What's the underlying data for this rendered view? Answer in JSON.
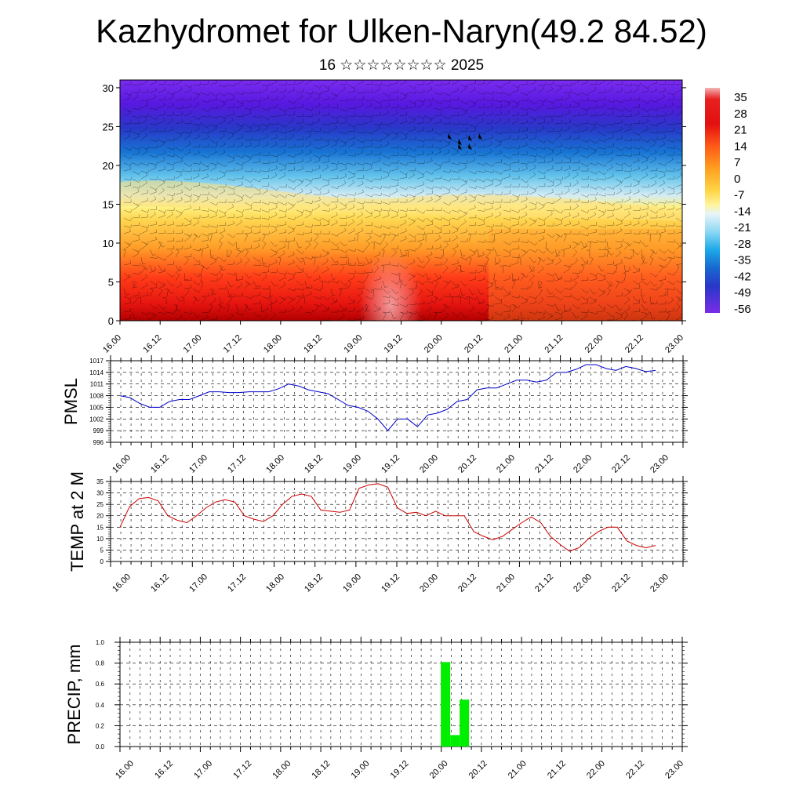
{
  "header": {
    "title": "Kazhydromet for Ulken-Naryn(49.2 84.52)",
    "subtitle": "16 ☆☆☆☆☆☆☆☆ 2025"
  },
  "chart_data": [
    {
      "type": "heatmap",
      "name": "upper-air-cross-section",
      "xlabel": "",
      "ylabel": "",
      "x_tick_labels": [
        "16.00",
        "16.12",
        "17.00",
        "17.12",
        "18.00",
        "18.12",
        "19.00",
        "19.12",
        "20.00",
        "20.12",
        "21.00",
        "21.12",
        "22.00",
        "22.12",
        "23.00"
      ],
      "y_ticks": [
        0,
        5,
        10,
        15,
        20,
        25,
        30
      ],
      "ylim": [
        0,
        31
      ],
      "colorbar_labels": [
        "35",
        "28",
        "21",
        "14",
        "7",
        "0",
        "-7",
        "-14",
        "-21",
        "-28",
        "-35",
        "-42",
        "-49",
        "-56"
      ],
      "colorbar_range": [
        -60,
        38
      ],
      "overlay": "wind barbs"
    },
    {
      "type": "line",
      "name": "pmsl",
      "ylabel": "PMSL",
      "y_ticks": [
        996,
        999,
        1002,
        1005,
        1008,
        1011,
        1014,
        1017
      ],
      "ylim": [
        996,
        1017
      ],
      "x_tick_labels": [
        "16.00",
        "16.12",
        "17.00",
        "17.12",
        "18.00",
        "18.12",
        "19.00",
        "19.12",
        "20.00",
        "20.12",
        "21.00",
        "21.12",
        "22.00",
        "22.12",
        "23.00"
      ],
      "line_color": "#0000cc",
      "values": [
        1008,
        1007.5,
        1006,
        1005,
        1005,
        1006.5,
        1007,
        1007,
        1008,
        1009,
        1009,
        1008.8,
        1008.8,
        1009,
        1009,
        1009,
        1009.8,
        1011,
        1010.5,
        1009.5,
        1009,
        1008.5,
        1007,
        1005.5,
        1005,
        1004,
        1002,
        999,
        1002,
        1002,
        1000,
        1003,
        1003.5,
        1004.5,
        1006.5,
        1007,
        1009.5,
        1010,
        1010,
        1011,
        1012,
        1012,
        1011.5,
        1012,
        1014,
        1014,
        1014.8,
        1016,
        1016,
        1015,
        1014.5,
        1015.5,
        1015,
        1014.2,
        1014.5
      ]
    },
    {
      "type": "line",
      "name": "temp-2m",
      "ylabel": "TEMP at 2 M",
      "y_ticks": [
        0,
        5,
        10,
        15,
        20,
        25,
        30,
        35
      ],
      "ylim": [
        0,
        35
      ],
      "x_tick_labels": [
        "16.00",
        "16.12",
        "17.00",
        "17.12",
        "18.00",
        "18.12",
        "19.00",
        "19.12",
        "20.00",
        "20.12",
        "21.00",
        "21.12",
        "22.00",
        "22.12",
        "23.00"
      ],
      "line_color": "#cc0000",
      "values": [
        15,
        24,
        27.5,
        28,
        26.5,
        20,
        18,
        17,
        20,
        23.5,
        26,
        27,
        26,
        20,
        18.5,
        17.5,
        20,
        25,
        28.5,
        29.5,
        28.5,
        22.5,
        22,
        21.5,
        22.5,
        32,
        33.5,
        34,
        32.5,
        23.5,
        21,
        21.5,
        20,
        22,
        20,
        20,
        20,
        13,
        11,
        9.5,
        11,
        14,
        17,
        19.5,
        17,
        11,
        7.5,
        4.5,
        6,
        10,
        13,
        15,
        15,
        9,
        7,
        6,
        7
      ]
    },
    {
      "type": "bar",
      "name": "precip",
      "ylabel": "PRECIP, mm",
      "y_ticks": [
        0.0,
        0.2,
        0.4,
        0.6,
        0.8,
        1.0
      ],
      "ylim": [
        0,
        1
      ],
      "x_tick_labels": [
        "16.00",
        "16.12",
        "17.00",
        "17.12",
        "18.00",
        "18.12",
        "19.00",
        "19.12",
        "20.00",
        "20.12",
        "21.00",
        "21.12",
        "22.00",
        "22.12",
        "23.00"
      ],
      "bar_color": "#00ee00",
      "bars": [
        {
          "x": "20.00",
          "value": 0.81
        },
        {
          "x": "20.03",
          "value": 0.11
        },
        {
          "x": "20.06",
          "value": 0.45
        }
      ]
    }
  ]
}
